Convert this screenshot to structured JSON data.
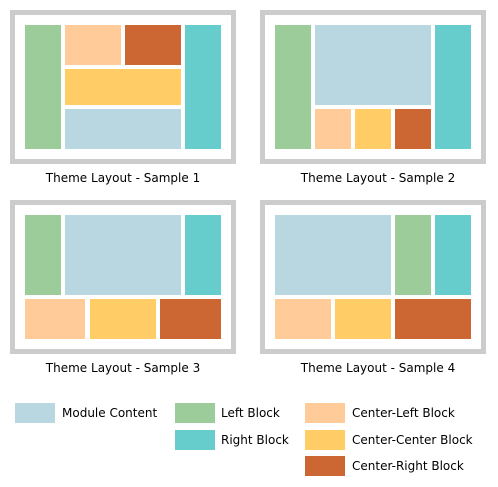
{
  "colors": {
    "module_content": "#b8d7e0",
    "left_block": "#9ccc9a",
    "right_block": "#66cccc",
    "center_left": "#ffcc99",
    "center_center": "#ffcc66",
    "center_right": "#cc6633",
    "frame": "#cccccc"
  },
  "samples": [
    {
      "caption": "Theme Layout - Sample 1"
    },
    {
      "caption": "Theme Layout - Sample 2"
    },
    {
      "caption": "Theme Layout - Sample 3"
    },
    {
      "caption": "Theme Layout - Sample 4"
    }
  ],
  "legend": {
    "module_content": "Module Content",
    "left_block": "Left Block",
    "right_block": "Right Block",
    "center_left": "Center-Left Block",
    "center_center": "Center-Center Block",
    "center_right": "Center-Right Block"
  }
}
